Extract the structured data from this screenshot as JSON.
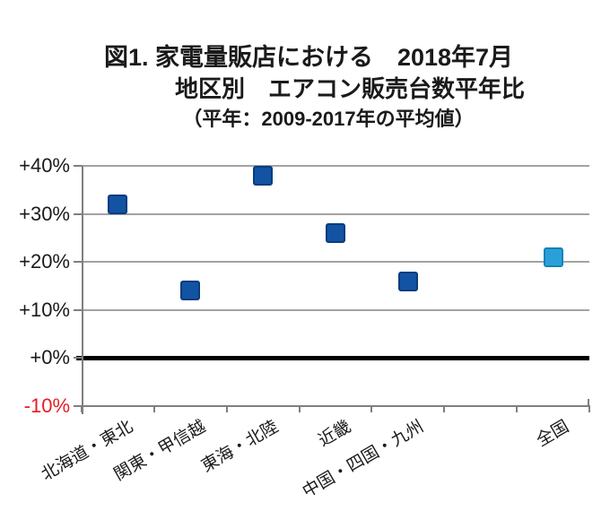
{
  "title": {
    "line1": "図1. 家電量販店における　2018年7月",
    "line2": "地区別　エアコン販売台数平年比",
    "line3": "（平年：2009-2017年の平均値）"
  },
  "chart_data": {
    "type": "scatter",
    "title": "図1. 家電量販店における 2018年7月 地区別 エアコン販売台数平年比",
    "subtitle": "平年：2009-2017年の平均値",
    "marker": "square",
    "grid": "horizontal",
    "legend": "none",
    "ylim": [
      -10,
      40
    ],
    "ytick_step": 10,
    "yticks": [
      {
        "value": 40,
        "label": "+40%"
      },
      {
        "value": 30,
        "label": "+30%"
      },
      {
        "value": 20,
        "label": "+20%"
      },
      {
        "value": 10,
        "label": "+10%"
      },
      {
        "value": 0,
        "label": "+0%"
      },
      {
        "value": -10,
        "label": "-10%"
      }
    ],
    "num_slots": 7,
    "points": [
      {
        "category": "北海道・東北",
        "value_pct": 32,
        "slot": 0,
        "color_key": "dark"
      },
      {
        "category": "関東・甲信越",
        "value_pct": 14,
        "slot": 1,
        "color_key": "dark"
      },
      {
        "category": "東海・北陸",
        "value_pct": 38,
        "slot": 2,
        "color_key": "dark"
      },
      {
        "category": "近畿",
        "value_pct": 26,
        "slot": 3,
        "color_key": "dark"
      },
      {
        "category": "中国・四国・九州",
        "value_pct": 16,
        "slot": 4,
        "color_key": "dark"
      },
      {
        "category": "全国",
        "value_pct": 21,
        "slot": 6,
        "color_key": "light"
      }
    ],
    "colors": {
      "dark_fill": "#1253a4",
      "dark_border": "#0a3c7c",
      "light_fill": "#2ba0d8",
      "light_border": "#1781b8",
      "gridline": "#a3a3a3",
      "axis": "#7f7f7f",
      "zero_line": "#000000",
      "tick_label": "#1a1a1a",
      "negative_tick_label": "#e81c24"
    }
  }
}
